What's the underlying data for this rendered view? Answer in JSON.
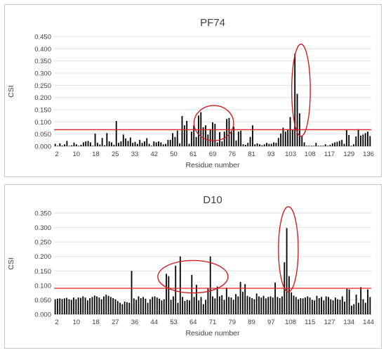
{
  "chart_data": [
    {
      "type": "bar",
      "title": "PF74",
      "xlabel": "Residue number",
      "ylabel": "CSI",
      "ylim": [
        0,
        0.45
      ],
      "yticks": [
        "0.000",
        "0.050",
        "0.100",
        "0.150",
        "0.200",
        "0.250",
        "0.300",
        "0.350",
        "0.400",
        "0.450"
      ],
      "xticks": [
        "2",
        "10",
        "18",
        "25",
        "33",
        "42",
        "50",
        "61",
        "69",
        "76",
        "81",
        "93",
        "103",
        "108",
        "117",
        "129",
        "136"
      ],
      "threshold": 0.068,
      "threshold_color": "#e02020",
      "bar_color": "#000000",
      "grid": true,
      "circle_color": "#d02020",
      "highlight_regions": [
        {
          "x_from": 61,
          "x_to": 78,
          "y_center": 0.095
        },
        {
          "x_from": 103,
          "x_to": 111,
          "y_center": 0.23
        }
      ],
      "values": [
        0.01,
        0.002,
        0.012,
        0.003,
        0.008,
        0.022,
        0.002,
        0.004,
        0.015,
        0.008,
        0.002,
        0.006,
        0.016,
        0.02,
        0.022,
        0.016,
        0.002,
        0.052,
        0.014,
        0.007,
        0.034,
        0.004,
        0.054,
        0.02,
        0.016,
        0.006,
        0.104,
        0.014,
        0.02,
        0.048,
        0.032,
        0.022,
        0.036,
        0.014,
        0.018,
        0.01,
        0.026,
        0.014,
        0.02,
        0.033,
        0.01,
        0.002,
        0.02,
        0.016,
        0.02,
        0.016,
        0.008,
        0.01,
        0.026,
        0.026,
        0.054,
        0.038,
        0.064,
        0.012,
        0.124,
        0.086,
        0.104,
        0.01,
        0.06,
        0.086,
        0.038,
        0.126,
        0.14,
        0.078,
        0.086,
        0.048,
        0.07,
        0.098,
        0.092,
        0.016,
        0.058,
        0.02,
        0.06,
        0.112,
        0.116,
        0.06,
        0.08,
        0.024,
        0.06,
        0.064,
        0.008,
        0.006,
        0.014,
        0.038,
        0.086,
        0.008,
        0.012,
        0.008,
        0.004,
        0.008,
        0.014,
        0.01,
        0.01,
        0.016,
        0.014,
        0.034,
        0.052,
        0.076,
        0.06,
        0.07,
        0.12,
        0.068,
        0.38,
        0.215,
        0.135,
        0.044,
        0.016,
        0.002,
        0.002,
        0.002,
        0.002,
        0.014,
        0.002,
        0.002,
        0.002,
        0.008,
        0.002,
        0.006,
        0.012,
        0.016,
        0.018,
        0.022,
        0.026,
        0.01,
        0.066,
        0.046,
        0.002,
        0.008,
        0.04,
        0.07,
        0.044,
        0.048,
        0.054,
        0.06,
        0.042
      ]
    },
    {
      "type": "bar",
      "title": "D10",
      "xlabel": "Residue number",
      "ylabel": "CSI",
      "ylim": [
        0,
        0.35
      ],
      "yticks": [
        "0.000",
        "0.050",
        "0.100",
        "0.150",
        "0.200",
        "0.250",
        "0.300",
        "0.350"
      ],
      "xticks": [
        "2",
        "10",
        "18",
        "27",
        "36",
        "44",
        "53",
        "64",
        "71",
        "79",
        "89",
        "97",
        "108",
        "115",
        "127",
        "134",
        "144"
      ],
      "threshold": 0.09,
      "threshold_color": "#e02020",
      "bar_color": "#000000",
      "grid": true,
      "circle_color": "#d02020",
      "highlight_regions": [
        {
          "x_from": 48,
          "x_to": 80,
          "y_center": 0.13
        },
        {
          "x_from": 103,
          "x_to": 112,
          "y_center": 0.225
        }
      ],
      "values": [
        0.052,
        0.054,
        0.055,
        0.053,
        0.055,
        0.057,
        0.052,
        0.05,
        0.058,
        0.052,
        0.058,
        0.057,
        0.062,
        0.058,
        0.048,
        0.056,
        0.06,
        0.065,
        0.062,
        0.058,
        0.052,
        0.062,
        0.068,
        0.064,
        0.06,
        0.056,
        0.052,
        0.046,
        0.04,
        0.035,
        0.044,
        0.042,
        0.04,
        0.15,
        0.055,
        0.05,
        0.062,
        0.056,
        0.06,
        0.054,
        0.04,
        0.052,
        0.06,
        0.062,
        0.058,
        0.054,
        0.048,
        0.052,
        0.14,
        0.132,
        0.05,
        0.062,
        0.168,
        0.04,
        0.2,
        0.06,
        0.046,
        0.05,
        0.048,
        0.136,
        0.06,
        0.102,
        0.048,
        0.06,
        0.035,
        0.05,
        0.09,
        0.2,
        0.062,
        0.055,
        0.096,
        0.062,
        0.066,
        0.05,
        0.092,
        0.06,
        0.058,
        0.05,
        0.07,
        0.062,
        0.112,
        0.078,
        0.104,
        0.064,
        0.06,
        0.056,
        0.052,
        0.072,
        0.062,
        0.058,
        0.064,
        0.055,
        0.06,
        0.062,
        0.058,
        0.11,
        0.06,
        0.056,
        0.062,
        0.18,
        0.298,
        0.132,
        0.076,
        0.065,
        0.06,
        0.052,
        0.056,
        0.055,
        0.058,
        0.062,
        0.058,
        0.05,
        0.048,
        0.064,
        0.056,
        0.06,
        0.048,
        0.062,
        0.06,
        0.052,
        0.048,
        0.058,
        0.052,
        0.05,
        0.062,
        0.044,
        0.088,
        0.086,
        0.03,
        0.035,
        0.068,
        0.04,
        0.094,
        0.052,
        0.04,
        0.086,
        0.06
      ]
    }
  ]
}
